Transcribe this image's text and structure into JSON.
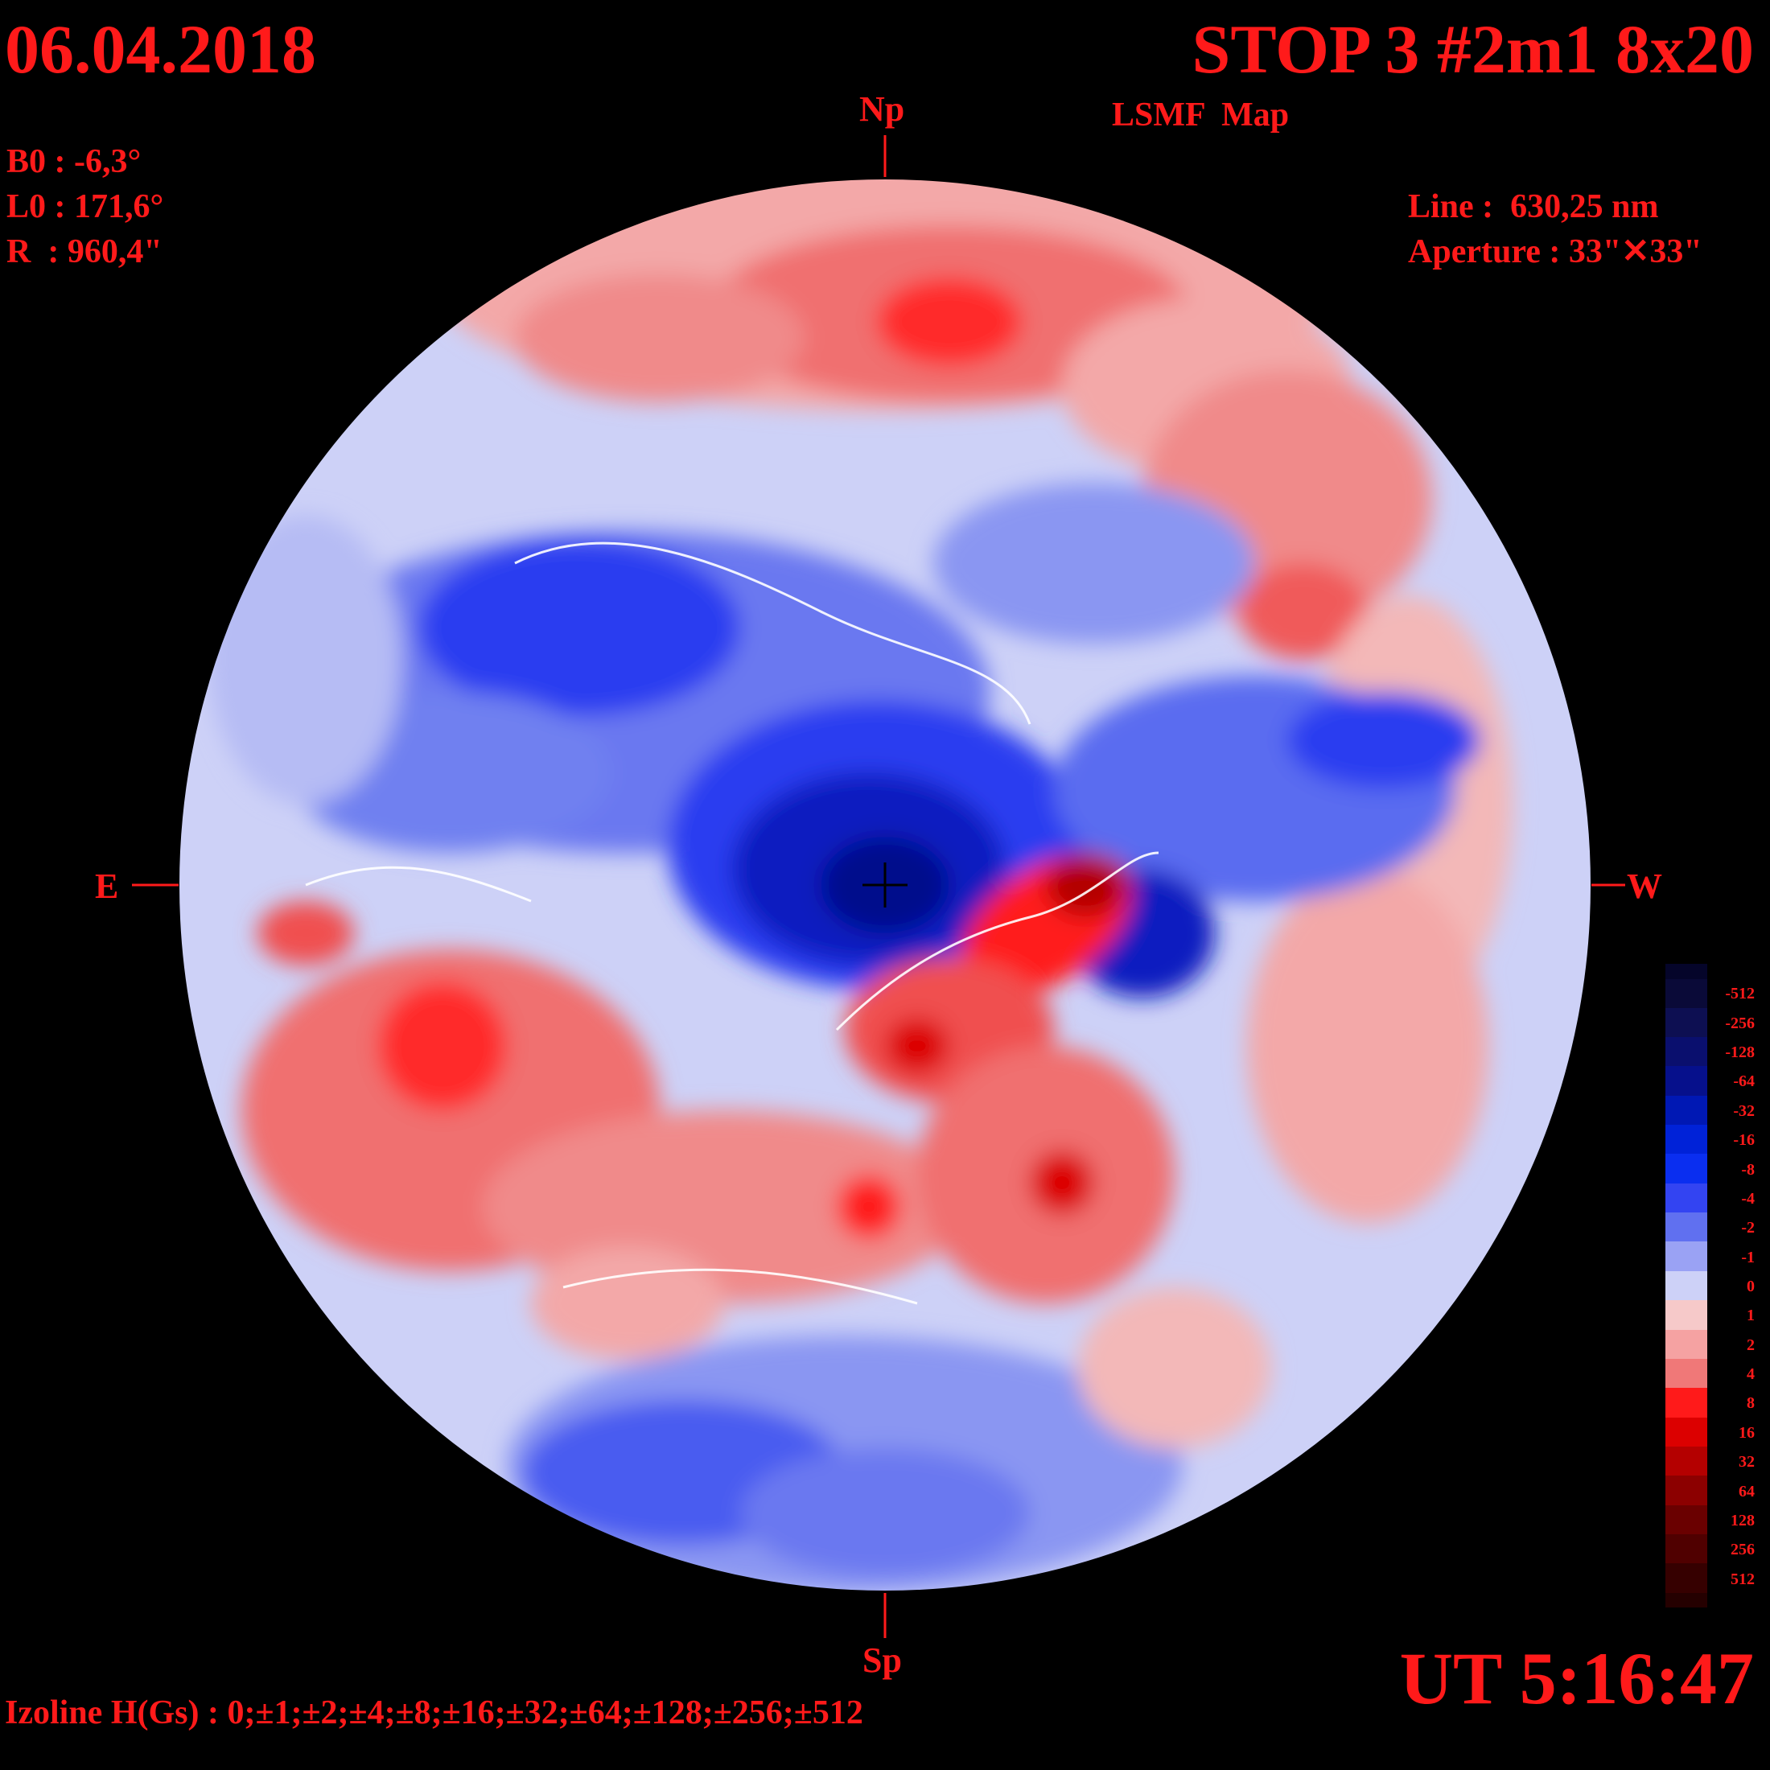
{
  "header": {
    "date": "06.04.2018",
    "title": "STOP 3 #2m1 8x20",
    "subtitle": "LSMF  Map"
  },
  "ephemeris": {
    "b0": "B0 : -6,3°",
    "l0": "L0 : 171,6°",
    "r": "R  : 960,4\""
  },
  "instrument": {
    "line": "Line :  630,25 nm",
    "aperture": "Aperture : 33\"✕33\""
  },
  "directions": {
    "north": "Np",
    "south": "Sp",
    "east": "E",
    "west": "W"
  },
  "time": "UT 5:16:47",
  "izoline": "Izoline H(Gs) : 0;±1;±2;±4;±8;±16;±32;±64;±128;±256;±512",
  "colorbar": {
    "labels": [
      "-512",
      "-256",
      "-128",
      "-64",
      "-32",
      "-16",
      "-8",
      "-4",
      "-2",
      "-1",
      "0",
      "1",
      "2",
      "4",
      "8",
      "16",
      "32",
      "64",
      "128",
      "256",
      "512"
    ],
    "colors": [
      "#0a0a38",
      "#0d0f52",
      "#0a0f6e",
      "#06108c",
      "#0018b4",
      "#0022d8",
      "#0a2ef0",
      "#3344f2",
      "#6070f0",
      "#9aa2f4",
      "#cdd1f7",
      "#f6c9c9",
      "#f5a2a2",
      "#f07878",
      "#ff1a1a",
      "#dc0000",
      "#b40000",
      "#8c0000",
      "#6a0000",
      "#500000",
      "#360000"
    ]
  },
  "map": {
    "background_color": "#cdd1f7",
    "polarity_colors": {
      "negative": "#2b3ef0",
      "positive": "#f03030"
    }
  }
}
